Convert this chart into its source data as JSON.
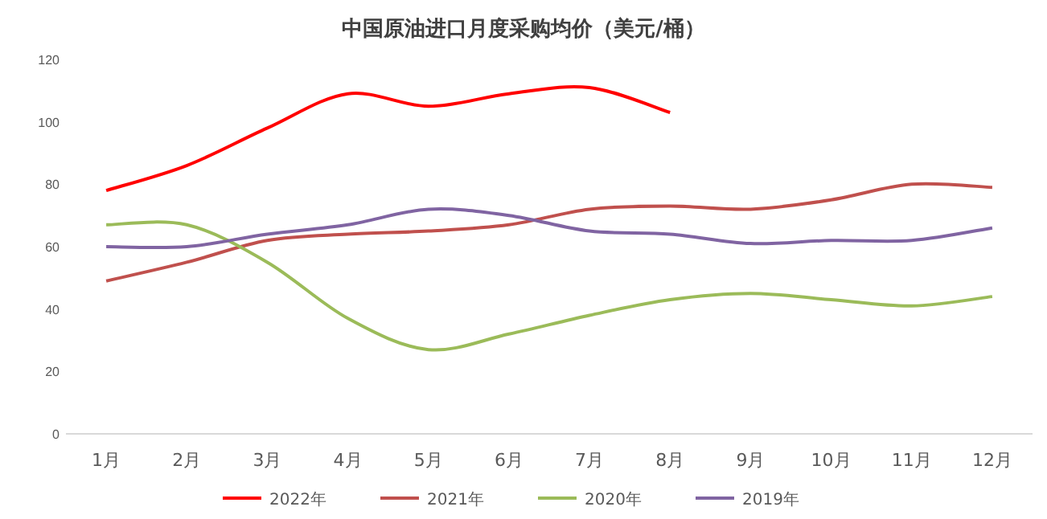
{
  "chart_data": {
    "type": "line",
    "title": "中国原油进口月度采购均价（美元/桶）",
    "categories": [
      "1月",
      "2月",
      "3月",
      "4月",
      "5月",
      "6月",
      "7月",
      "8月",
      "9月",
      "10月",
      "11月",
      "12月"
    ],
    "series": [
      {
        "name": "2022年",
        "color": "#ff0000",
        "values": [
          78,
          86,
          98,
          109,
          105,
          109,
          111,
          103,
          null,
          null,
          null,
          null
        ]
      },
      {
        "name": "2021年",
        "color": "#c0504d",
        "values": [
          49,
          55,
          62,
          64,
          65,
          67,
          72,
          73,
          72,
          75,
          80,
          79
        ]
      },
      {
        "name": "2020年",
        "color": "#9bbb59",
        "values": [
          67,
          67,
          55,
          37,
          27,
          32,
          38,
          43,
          45,
          43,
          41,
          44
        ]
      },
      {
        "name": "2019年",
        "color": "#8064a2",
        "values": [
          60,
          60,
          64,
          67,
          72,
          70,
          65,
          64,
          61,
          62,
          62,
          66
        ]
      }
    ],
    "ylim": [
      0,
      120
    ],
    "yticks": [
      0,
      20,
      40,
      60,
      80,
      100,
      120
    ],
    "grid": false,
    "legend": "bottom",
    "marker": "none",
    "line_style": "solid"
  }
}
